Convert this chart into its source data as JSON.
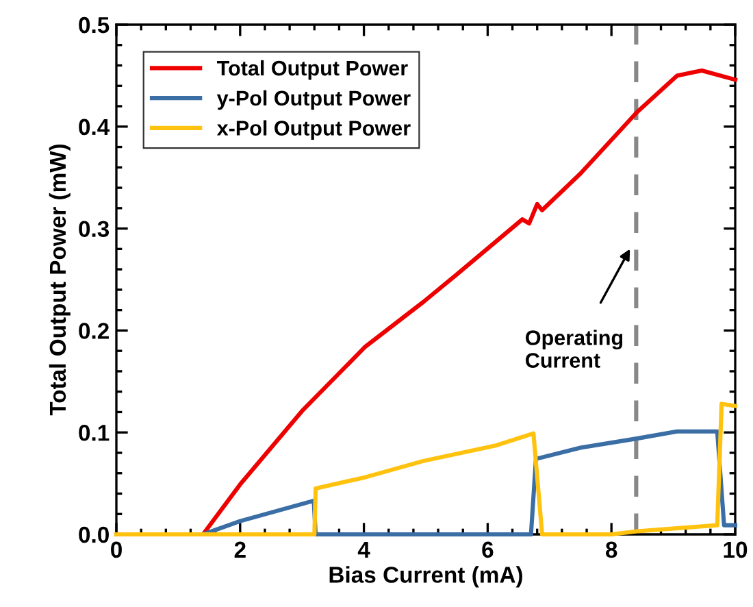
{
  "chart_data": {
    "type": "line",
    "xlabel": "Bias Current (mA)",
    "ylabel": "Total Output Power (mW)",
    "xlim": [
      0,
      10
    ],
    "ylim": [
      0,
      0.5
    ],
    "xticks": [
      0,
      2,
      4,
      6,
      8,
      10
    ],
    "yticks": [
      {
        "value": 0,
        "label": "0.0"
      },
      0.1,
      0.2,
      0.3,
      0.4,
      0.5
    ],
    "grid": false,
    "legend": "top left",
    "marker": "none",
    "line_style": "solid",
    "series": [
      {
        "name": "Total Output Power",
        "color": "#ee0000",
        "x": [
          0,
          1.4,
          2.0,
          3.0,
          4.02,
          4.96,
          5.5,
          6.56,
          6.67,
          6.8,
          6.88,
          7.5,
          8.41,
          9.06,
          9.46,
          10
        ],
        "values": [
          0,
          0,
          0.049,
          0.121,
          0.184,
          0.228,
          0.255,
          0.309,
          0.305,
          0.324,
          0.318,
          0.354,
          0.414,
          0.45,
          0.455,
          0.446
        ]
      },
      {
        "name": "y-Pol Output Power",
        "color": "#3a6ea5",
        "x": [
          0,
          1.4,
          2.0,
          3.19,
          3.22,
          6.7,
          6.78,
          7.5,
          8.41,
          9.06,
          9.71,
          9.82,
          10
        ],
        "values": [
          0,
          0,
          0.013,
          0.033,
          0,
          0,
          0.074,
          0.085,
          0.094,
          0.101,
          0.101,
          0.009,
          0.009
        ]
      },
      {
        "name": "x-Pol Output Power",
        "color": "#ffc20e",
        "x": [
          0,
          3.2,
          3.22,
          4.02,
          4.96,
          6.12,
          6.74,
          6.88,
          8.0,
          8.41,
          9.71,
          9.78,
          10
        ],
        "values": [
          0,
          0,
          0.045,
          0.056,
          0.072,
          0.087,
          0.099,
          0,
          0,
          0.003,
          0.009,
          0.128,
          0.126
        ]
      }
    ],
    "ref_lines": [
      {
        "axis": "x",
        "value": 8.4,
        "color": "#888888",
        "line_style": "dashed"
      }
    ],
    "annotations": [
      "Operating\nCurrent"
    ]
  }
}
